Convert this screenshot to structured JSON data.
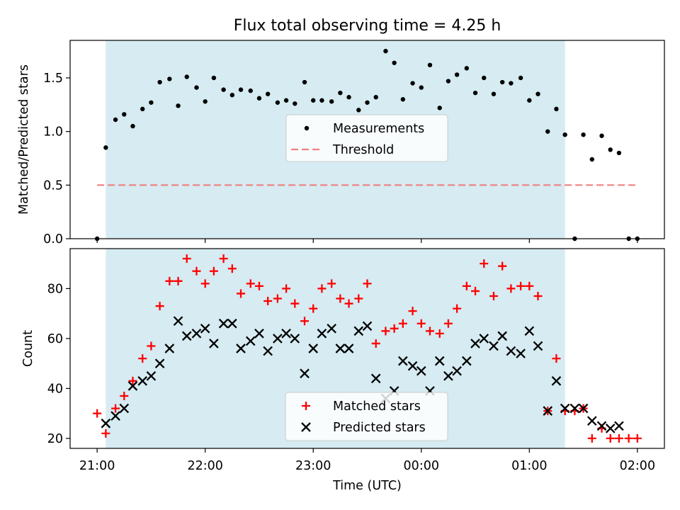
{
  "title": "Flux total observing time = 4.25 h",
  "chart_data": [
    {
      "type": "scatter",
      "ylabel": "Matched/Predicted stars",
      "ylim": [
        0,
        1.85
      ],
      "yticks": [
        0.0,
        0.5,
        1.0,
        1.5
      ],
      "ytick_labels": [
        "0.0",
        "0.5",
        "1.0",
        "1.5"
      ],
      "observing_window": {
        "start": 0.08,
        "end": 4.33,
        "color": "#add8e6"
      },
      "threshold": {
        "name": "Threshold",
        "value": 0.5,
        "x_start": 0.0,
        "x_end": 4.98,
        "color": "#f08080"
      },
      "legend": {
        "placement": "center",
        "entries": [
          "Measurements",
          "Threshold"
        ]
      },
      "series": [
        {
          "name": "Measurements",
          "color": "#000000",
          "x": [
            0.0,
            0.08,
            0.17,
            0.25,
            0.33,
            0.42,
            0.5,
            0.58,
            0.67,
            0.75,
            0.83,
            0.92,
            1.0,
            1.08,
            1.17,
            1.25,
            1.33,
            1.42,
            1.5,
            1.58,
            1.67,
            1.75,
            1.83,
            1.92,
            2.0,
            2.08,
            2.17,
            2.25,
            2.33,
            2.42,
            2.5,
            2.58,
            2.67,
            2.75,
            2.83,
            2.92,
            3.0,
            3.08,
            3.17,
            3.25,
            3.33,
            3.42,
            3.5,
            3.58,
            3.67,
            3.75,
            3.83,
            3.92,
            4.0,
            4.08,
            4.17,
            4.25,
            4.33,
            4.42,
            4.5,
            4.58,
            4.67,
            4.75,
            4.83,
            4.92,
            5.0
          ],
          "y": [
            0.0,
            0.85,
            1.11,
            1.16,
            1.05,
            1.21,
            1.27,
            1.46,
            1.49,
            1.24,
            1.51,
            1.41,
            1.28,
            1.5,
            1.39,
            1.34,
            1.39,
            1.38,
            1.31,
            1.35,
            1.27,
            1.29,
            1.26,
            1.46,
            1.29,
            1.29,
            1.28,
            1.36,
            1.32,
            1.2,
            1.27,
            1.32,
            1.75,
            1.64,
            1.3,
            1.45,
            1.41,
            1.62,
            1.22,
            1.47,
            1.53,
            1.59,
            1.36,
            1.5,
            1.35,
            1.46,
            1.45,
            1.5,
            1.29,
            1.35,
            1.0,
            1.21,
            0.97,
            0.0,
            0.97,
            0.74,
            0.96,
            0.83,
            0.8,
            0.0,
            0.0
          ]
        }
      ]
    },
    {
      "type": "scatter",
      "xlabel": "Time (UTC)",
      "ylabel": "Count",
      "ylim": [
        16,
        96
      ],
      "yticks": [
        20,
        40,
        60,
        80
      ],
      "ytick_labels": [
        "20",
        "40",
        "60",
        "80"
      ],
      "xlim": [
        -0.25,
        5.25
      ],
      "xticks": [
        0,
        1,
        2,
        3,
        4,
        5
      ],
      "xtick_labels": [
        "21:00",
        "22:00",
        "23:00",
        "00:00",
        "01:00",
        "02:00"
      ],
      "observing_window": {
        "start": 0.08,
        "end": 4.33,
        "color": "#add8e6"
      },
      "legend": {
        "placement": "lower center",
        "entries": [
          "Matched stars",
          "Predicted stars"
        ]
      },
      "series": [
        {
          "name": "Matched stars",
          "marker": "plus",
          "color": "#ff0000",
          "x": [
            0.0,
            0.08,
            0.17,
            0.25,
            0.33,
            0.42,
            0.5,
            0.58,
            0.67,
            0.75,
            0.83,
            0.92,
            1.0,
            1.08,
            1.17,
            1.25,
            1.33,
            1.42,
            1.5,
            1.58,
            1.67,
            1.75,
            1.83,
            1.92,
            2.0,
            2.08,
            2.17,
            2.25,
            2.33,
            2.42,
            2.5,
            2.58,
            2.67,
            2.75,
            2.83,
            2.92,
            3.0,
            3.08,
            3.17,
            3.25,
            3.33,
            3.42,
            3.5,
            3.58,
            3.67,
            3.75,
            3.83,
            3.92,
            4.0,
            4.08,
            4.17,
            4.25,
            4.33,
            4.42,
            4.5,
            4.58,
            4.67,
            4.75,
            4.83,
            4.92,
            5.0
          ],
          "y": [
            30,
            22,
            32,
            37,
            43,
            52,
            57,
            73,
            83,
            83,
            92,
            87,
            82,
            87,
            92,
            88,
            78,
            82,
            81,
            75,
            76,
            80,
            74,
            67,
            72,
            80,
            82,
            76,
            74,
            76,
            82,
            58,
            63,
            64,
            66,
            71,
            66,
            63,
            62,
            66,
            72,
            81,
            79,
            90,
            77,
            89,
            80,
            81,
            81,
            77,
            31,
            52,
            31,
            31,
            32,
            20,
            24,
            20,
            20,
            20,
            20
          ]
        },
        {
          "name": "Predicted stars",
          "marker": "x",
          "color": "#000000",
          "x": [
            0.08,
            0.17,
            0.25,
            0.33,
            0.42,
            0.5,
            0.58,
            0.67,
            0.75,
            0.83,
            0.92,
            1.0,
            1.08,
            1.17,
            1.25,
            1.33,
            1.42,
            1.5,
            1.58,
            1.67,
            1.75,
            1.83,
            1.92,
            2.0,
            2.08,
            2.17,
            2.25,
            2.33,
            2.42,
            2.5,
            2.58,
            2.67,
            2.75,
            2.83,
            2.92,
            3.0,
            3.08,
            3.17,
            3.25,
            3.33,
            3.42,
            3.5,
            3.58,
            3.67,
            3.75,
            3.83,
            3.92,
            4.0,
            4.08,
            4.17,
            4.25,
            4.33,
            4.42,
            4.5,
            4.58,
            4.67,
            4.75,
            4.83
          ],
          "y": [
            26,
            29,
            32,
            41,
            43,
            45,
            50,
            56,
            67,
            61,
            62,
            64,
            58,
            66,
            66,
            56,
            59,
            62,
            55,
            60,
            62,
            60,
            46,
            56,
            62,
            64,
            56,
            56,
            63,
            65,
            44,
            36,
            39,
            51,
            49,
            47,
            39,
            51,
            45,
            47,
            51,
            58,
            60,
            57,
            61,
            55,
            54,
            63,
            57,
            31,
            43,
            32,
            32,
            32,
            27,
            25,
            24,
            25
          ]
        }
      ]
    }
  ]
}
